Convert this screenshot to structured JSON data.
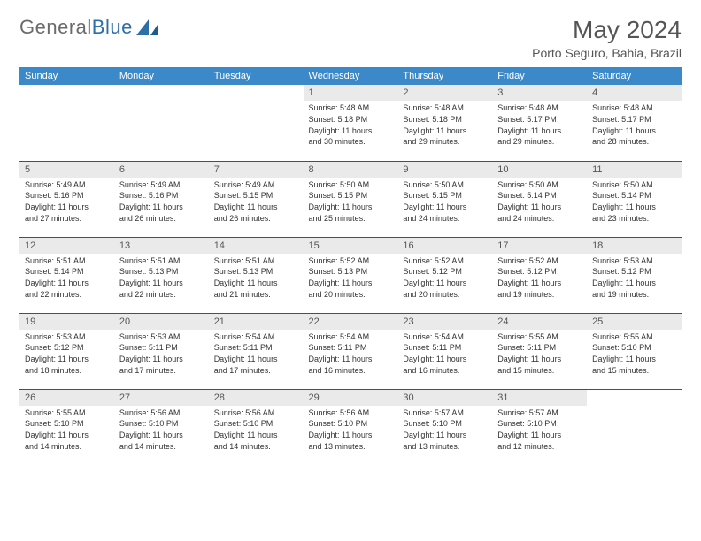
{
  "brand": {
    "part1": "General",
    "part2": "Blue"
  },
  "title": "May 2024",
  "location": "Porto Seguro, Bahia, Brazil",
  "colors": {
    "header_bg": "#3b89c9",
    "header_text": "#ffffff",
    "daynum_bg": "#eaeaea",
    "rule": "#1f5a8a",
    "brand_gray": "#6b6b6b",
    "brand_blue": "#2f6fa7"
  },
  "weekdays": [
    "Sunday",
    "Monday",
    "Tuesday",
    "Wednesday",
    "Thursday",
    "Friday",
    "Saturday"
  ],
  "weeks": [
    [
      null,
      null,
      null,
      {
        "n": "1",
        "rise": "Sunrise: 5:48 AM",
        "set": "Sunset: 5:18 PM",
        "day1": "Daylight: 11 hours",
        "day2": "and 30 minutes."
      },
      {
        "n": "2",
        "rise": "Sunrise: 5:48 AM",
        "set": "Sunset: 5:18 PM",
        "day1": "Daylight: 11 hours",
        "day2": "and 29 minutes."
      },
      {
        "n": "3",
        "rise": "Sunrise: 5:48 AM",
        "set": "Sunset: 5:17 PM",
        "day1": "Daylight: 11 hours",
        "day2": "and 29 minutes."
      },
      {
        "n": "4",
        "rise": "Sunrise: 5:48 AM",
        "set": "Sunset: 5:17 PM",
        "day1": "Daylight: 11 hours",
        "day2": "and 28 minutes."
      }
    ],
    [
      {
        "n": "5",
        "rise": "Sunrise: 5:49 AM",
        "set": "Sunset: 5:16 PM",
        "day1": "Daylight: 11 hours",
        "day2": "and 27 minutes."
      },
      {
        "n": "6",
        "rise": "Sunrise: 5:49 AM",
        "set": "Sunset: 5:16 PM",
        "day1": "Daylight: 11 hours",
        "day2": "and 26 minutes."
      },
      {
        "n": "7",
        "rise": "Sunrise: 5:49 AM",
        "set": "Sunset: 5:15 PM",
        "day1": "Daylight: 11 hours",
        "day2": "and 26 minutes."
      },
      {
        "n": "8",
        "rise": "Sunrise: 5:50 AM",
        "set": "Sunset: 5:15 PM",
        "day1": "Daylight: 11 hours",
        "day2": "and 25 minutes."
      },
      {
        "n": "9",
        "rise": "Sunrise: 5:50 AM",
        "set": "Sunset: 5:15 PM",
        "day1": "Daylight: 11 hours",
        "day2": "and 24 minutes."
      },
      {
        "n": "10",
        "rise": "Sunrise: 5:50 AM",
        "set": "Sunset: 5:14 PM",
        "day1": "Daylight: 11 hours",
        "day2": "and 24 minutes."
      },
      {
        "n": "11",
        "rise": "Sunrise: 5:50 AM",
        "set": "Sunset: 5:14 PM",
        "day1": "Daylight: 11 hours",
        "day2": "and 23 minutes."
      }
    ],
    [
      {
        "n": "12",
        "rise": "Sunrise: 5:51 AM",
        "set": "Sunset: 5:14 PM",
        "day1": "Daylight: 11 hours",
        "day2": "and 22 minutes."
      },
      {
        "n": "13",
        "rise": "Sunrise: 5:51 AM",
        "set": "Sunset: 5:13 PM",
        "day1": "Daylight: 11 hours",
        "day2": "and 22 minutes."
      },
      {
        "n": "14",
        "rise": "Sunrise: 5:51 AM",
        "set": "Sunset: 5:13 PM",
        "day1": "Daylight: 11 hours",
        "day2": "and 21 minutes."
      },
      {
        "n": "15",
        "rise": "Sunrise: 5:52 AM",
        "set": "Sunset: 5:13 PM",
        "day1": "Daylight: 11 hours",
        "day2": "and 20 minutes."
      },
      {
        "n": "16",
        "rise": "Sunrise: 5:52 AM",
        "set": "Sunset: 5:12 PM",
        "day1": "Daylight: 11 hours",
        "day2": "and 20 minutes."
      },
      {
        "n": "17",
        "rise": "Sunrise: 5:52 AM",
        "set": "Sunset: 5:12 PM",
        "day1": "Daylight: 11 hours",
        "day2": "and 19 minutes."
      },
      {
        "n": "18",
        "rise": "Sunrise: 5:53 AM",
        "set": "Sunset: 5:12 PM",
        "day1": "Daylight: 11 hours",
        "day2": "and 19 minutes."
      }
    ],
    [
      {
        "n": "19",
        "rise": "Sunrise: 5:53 AM",
        "set": "Sunset: 5:12 PM",
        "day1": "Daylight: 11 hours",
        "day2": "and 18 minutes."
      },
      {
        "n": "20",
        "rise": "Sunrise: 5:53 AM",
        "set": "Sunset: 5:11 PM",
        "day1": "Daylight: 11 hours",
        "day2": "and 17 minutes."
      },
      {
        "n": "21",
        "rise": "Sunrise: 5:54 AM",
        "set": "Sunset: 5:11 PM",
        "day1": "Daylight: 11 hours",
        "day2": "and 17 minutes."
      },
      {
        "n": "22",
        "rise": "Sunrise: 5:54 AM",
        "set": "Sunset: 5:11 PM",
        "day1": "Daylight: 11 hours",
        "day2": "and 16 minutes."
      },
      {
        "n": "23",
        "rise": "Sunrise: 5:54 AM",
        "set": "Sunset: 5:11 PM",
        "day1": "Daylight: 11 hours",
        "day2": "and 16 minutes."
      },
      {
        "n": "24",
        "rise": "Sunrise: 5:55 AM",
        "set": "Sunset: 5:11 PM",
        "day1": "Daylight: 11 hours",
        "day2": "and 15 minutes."
      },
      {
        "n": "25",
        "rise": "Sunrise: 5:55 AM",
        "set": "Sunset: 5:10 PM",
        "day1": "Daylight: 11 hours",
        "day2": "and 15 minutes."
      }
    ],
    [
      {
        "n": "26",
        "rise": "Sunrise: 5:55 AM",
        "set": "Sunset: 5:10 PM",
        "day1": "Daylight: 11 hours",
        "day2": "and 14 minutes."
      },
      {
        "n": "27",
        "rise": "Sunrise: 5:56 AM",
        "set": "Sunset: 5:10 PM",
        "day1": "Daylight: 11 hours",
        "day2": "and 14 minutes."
      },
      {
        "n": "28",
        "rise": "Sunrise: 5:56 AM",
        "set": "Sunset: 5:10 PM",
        "day1": "Daylight: 11 hours",
        "day2": "and 14 minutes."
      },
      {
        "n": "29",
        "rise": "Sunrise: 5:56 AM",
        "set": "Sunset: 5:10 PM",
        "day1": "Daylight: 11 hours",
        "day2": "and 13 minutes."
      },
      {
        "n": "30",
        "rise": "Sunrise: 5:57 AM",
        "set": "Sunset: 5:10 PM",
        "day1": "Daylight: 11 hours",
        "day2": "and 13 minutes."
      },
      {
        "n": "31",
        "rise": "Sunrise: 5:57 AM",
        "set": "Sunset: 5:10 PM",
        "day1": "Daylight: 11 hours",
        "day2": "and 12 minutes."
      },
      null
    ]
  ]
}
